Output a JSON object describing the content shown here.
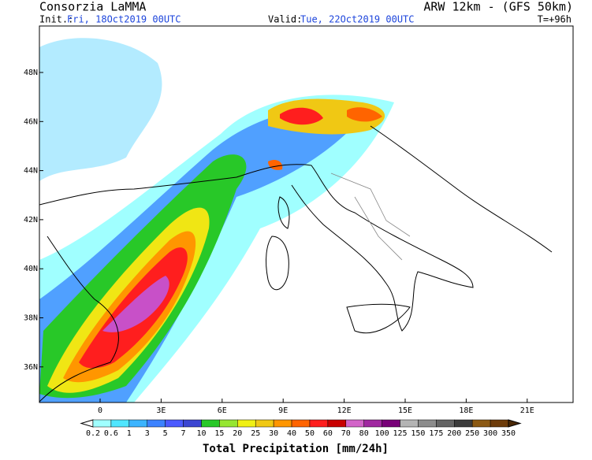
{
  "header": {
    "left_title": "Consorzia LaMMA",
    "right_title": "ARW 12km - (GFS 50km)",
    "init_label": "Init.:",
    "init_value": "Fri, 18Oct2019 00UTC",
    "valid_label": "Valid:",
    "valid_value": "Tue, 22Oct2019 00UTC",
    "forecast_step": "T=+96h"
  },
  "map": {
    "lat_labels": [
      "48N",
      "46N",
      "44N",
      "42N",
      "40N",
      "38N",
      "36N"
    ],
    "lon_labels": [
      "0",
      "3E",
      "6E",
      "9E",
      "12E",
      "15E",
      "18E",
      "21E"
    ]
  },
  "legend": {
    "title": "Total Precipitation [mm/24h]",
    "levels": [
      0.2,
      0.6,
      1,
      3,
      5,
      7,
      10,
      15,
      20,
      25,
      30,
      40,
      50,
      60,
      70,
      80,
      100,
      125,
      150,
      175,
      200,
      250,
      300,
      350
    ],
    "colors": [
      "#a0ffff",
      "#50e6ff",
      "#3cb4ff",
      "#3c82ff",
      "#4b5aff",
      "#3c46d2",
      "#28c828",
      "#96e632",
      "#f0f014",
      "#f0c814",
      "#ff9600",
      "#ff6400",
      "#ff1e1e",
      "#c80000",
      "#d264c8",
      "#a028a0",
      "#780078",
      "#b4b4b4",
      "#8c8c8c",
      "#646464",
      "#3c3c3c",
      "#8c5a14",
      "#6e3c0a"
    ]
  }
}
